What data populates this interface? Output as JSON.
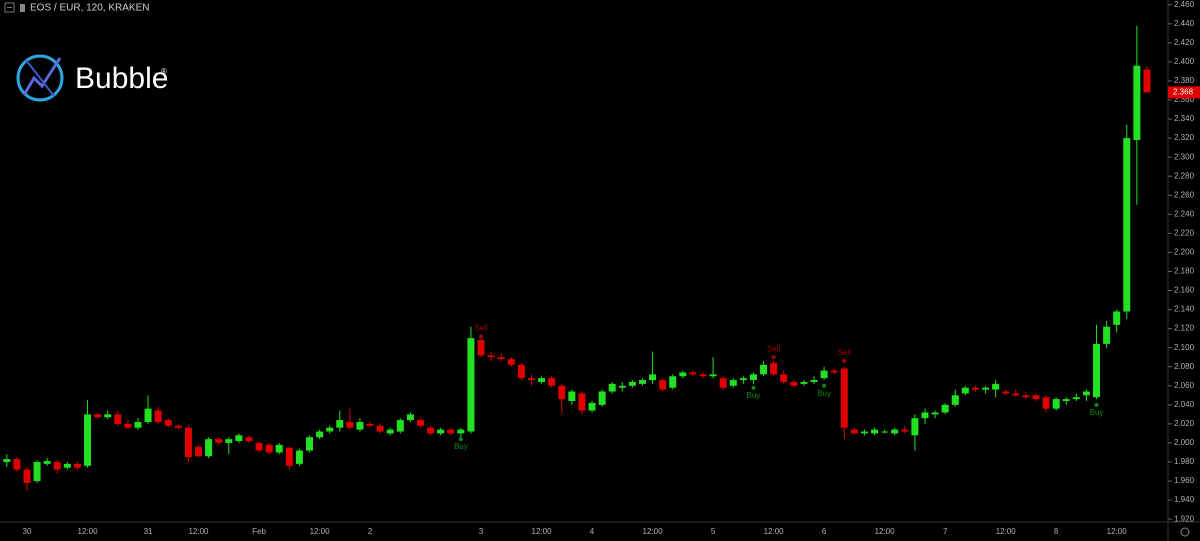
{
  "chart_data": {
    "type": "candlestick",
    "title": "EOS / EUR, 120, KRAKEN",
    "logo_text": "Bubble",
    "logo_mark": "®",
    "up_color": "#22e022",
    "down_color": "#e00000",
    "categories": [
      null,
      null,
      "30",
      null,
      null,
      null,
      null,
      null,
      "12:00",
      null,
      null,
      null,
      null,
      null,
      "31",
      null,
      null,
      null,
      null,
      "12:00",
      null,
      null,
      null,
      null,
      null,
      "Feb",
      null,
      null,
      null,
      null,
      null,
      "12:00",
      null,
      null,
      null,
      null,
      "2",
      null,
      null,
      null,
      null,
      null,
      null,
      null,
      null,
      null,
      null,
      "3",
      null,
      null,
      null,
      null,
      null,
      "12:00",
      null,
      null,
      null,
      null,
      "4",
      null,
      null,
      null,
      null,
      null,
      "12:00",
      null,
      null,
      null,
      null,
      null,
      "5",
      null,
      null,
      null,
      null,
      null,
      "12:00",
      null,
      null,
      null,
      null,
      "6",
      null,
      null,
      null,
      null,
      null,
      "12:00",
      null,
      null,
      null,
      null,
      null,
      "7",
      null,
      null,
      null,
      null,
      null,
      "12:00",
      null,
      null,
      null,
      null,
      "8",
      null,
      null,
      null,
      null,
      null,
      "12:00",
      null,
      null,
      null
    ],
    "open": [
      1.98,
      1.983,
      1.972,
      1.96,
      1.978,
      1.98,
      1.974,
      1.978,
      1.976,
      2.03,
      2.027,
      2.03,
      2.02,
      2.016,
      2.022,
      2.034,
      2.024,
      2.018,
      2.016,
      1.996,
      1.986,
      2.004,
      2.0,
      2.002,
      2.006,
      2.0,
      1.998,
      1.99,
      1.995,
      1.978,
      1.992,
      2.006,
      2.012,
      2.016,
      2.022,
      2.014,
      2.02,
      2.018,
      2.01,
      2.012,
      2.024,
      2.024,
      2.016,
      2.01,
      2.014,
      2.01,
      2.012,
      2.108,
      2.092,
      2.09,
      2.088,
      2.082,
      2.068,
      2.064,
      2.068,
      2.06,
      2.044,
      2.052,
      2.034,
      2.04,
      2.054,
      2.058,
      2.06,
      2.062,
      2.066,
      2.066,
      2.058,
      2.07,
      2.074,
      2.072,
      2.07,
      2.068,
      2.06,
      2.066,
      2.066,
      2.072,
      2.084,
      2.072,
      2.064,
      2.062,
      2.064,
      2.068,
      2.076,
      2.078,
      2.014,
      2.01,
      2.01,
      2.012,
      2.01,
      2.014,
      2.008,
      2.026,
      2.03,
      2.032,
      2.04,
      2.052,
      2.058,
      2.056,
      2.056,
      2.054,
      2.052,
      2.05,
      2.05,
      2.048,
      2.036,
      2.044,
      2.046,
      2.05,
      2.048,
      2.104,
      2.124,
      2.138,
      2.318,
      2.392
    ],
    "high": [
      1.988,
      1.985,
      1.975,
      1.982,
      1.984,
      1.982,
      1.98,
      1.98,
      2.045,
      2.032,
      2.034,
      2.034,
      2.024,
      2.026,
      2.05,
      2.038,
      2.026,
      2.02,
      2.018,
      1.998,
      2.006,
      2.006,
      2.006,
      2.01,
      2.008,
      2.002,
      2.0,
      2.0,
      1.996,
      1.994,
      2.008,
      2.014,
      2.018,
      2.034,
      2.036,
      2.026,
      2.022,
      2.02,
      2.016,
      2.026,
      2.032,
      2.026,
      2.018,
      2.016,
      2.016,
      2.016,
      2.122,
      2.11,
      2.096,
      2.094,
      2.09,
      2.084,
      2.072,
      2.07,
      2.07,
      2.062,
      2.056,
      2.054,
      2.044,
      2.056,
      2.064,
      2.064,
      2.066,
      2.068,
      2.096,
      2.068,
      2.072,
      2.076,
      2.076,
      2.074,
      2.09,
      2.07,
      2.068,
      2.07,
      2.074,
      2.086,
      2.086,
      2.076,
      2.066,
      2.066,
      2.07,
      2.08,
      2.078,
      2.08,
      2.016,
      2.014,
      2.016,
      2.014,
      2.016,
      2.018,
      2.03,
      2.036,
      2.034,
      2.042,
      2.056,
      2.06,
      2.06,
      2.06,
      2.066,
      2.056,
      2.056,
      2.054,
      2.052,
      2.05,
      2.048,
      2.048,
      2.052,
      2.056,
      2.124,
      2.128,
      2.14,
      2.334,
      2.438,
      2.396
    ],
    "low": [
      1.975,
      1.97,
      1.95,
      1.958,
      1.976,
      1.968,
      1.972,
      1.972,
      1.974,
      2.025,
      2.025,
      2.018,
      2.014,
      2.014,
      2.02,
      2.02,
      2.016,
      2.014,
      1.98,
      1.985,
      1.984,
      1.998,
      1.988,
      2.0,
      2.0,
      1.99,
      1.988,
      1.988,
      1.972,
      1.976,
      1.99,
      2.004,
      2.01,
      2.012,
      2.014,
      2.012,
      2.016,
      2.01,
      2.008,
      2.01,
      2.022,
      2.016,
      2.008,
      2.008,
      2.008,
      2.006,
      2.01,
      2.09,
      2.086,
      2.086,
      2.08,
      2.066,
      2.06,
      2.062,
      2.058,
      2.032,
      2.04,
      2.03,
      2.032,
      2.038,
      2.052,
      2.054,
      2.058,
      2.06,
      2.062,
      2.054,
      2.056,
      2.068,
      2.07,
      2.068,
      2.068,
      2.056,
      2.058,
      2.062,
      2.062,
      2.07,
      2.07,
      2.062,
      2.058,
      2.06,
      2.062,
      2.066,
      2.072,
      2.004,
      2.008,
      2.008,
      2.008,
      2.01,
      2.008,
      2.01,
      1.992,
      2.02,
      2.026,
      2.03,
      2.038,
      2.05,
      2.054,
      2.052,
      2.048,
      2.05,
      2.048,
      2.046,
      2.044,
      2.032,
      2.034,
      2.04,
      2.044,
      2.044,
      2.046,
      2.1,
      2.116,
      2.13,
      2.25,
      2.368
    ],
    "close": [
      1.983,
      1.972,
      1.958,
      1.98,
      1.981,
      1.972,
      1.978,
      1.974,
      2.03,
      2.027,
      2.03,
      2.02,
      2.016,
      2.022,
      2.036,
      2.022,
      2.018,
      2.016,
      1.985,
      1.986,
      2.004,
      2.0,
      2.004,
      2.008,
      2.002,
      1.992,
      1.99,
      1.998,
      1.976,
      1.992,
      2.006,
      2.012,
      2.016,
      2.024,
      2.016,
      2.022,
      2.018,
      2.012,
      2.014,
      2.024,
      2.03,
      2.018,
      2.01,
      2.014,
      2.01,
      2.014,
      2.11,
      2.092,
      2.09,
      2.088,
      2.082,
      2.068,
      2.066,
      2.068,
      2.06,
      2.046,
      2.054,
      2.034,
      2.042,
      2.054,
      2.062,
      2.06,
      2.064,
      2.066,
      2.072,
      2.056,
      2.07,
      2.074,
      2.072,
      2.07,
      2.072,
      2.058,
      2.066,
      2.068,
      2.072,
      2.082,
      2.072,
      2.064,
      2.06,
      2.064,
      2.066,
      2.076,
      2.074,
      2.016,
      2.01,
      2.012,
      2.014,
      2.012,
      2.014,
      2.012,
      2.026,
      2.032,
      2.032,
      2.04,
      2.05,
      2.058,
      2.056,
      2.058,
      2.062,
      2.052,
      2.05,
      2.048,
      2.046,
      2.036,
      2.046,
      2.046,
      2.048,
      2.054,
      2.104,
      2.122,
      2.138,
      2.32,
      2.396,
      2.368
    ],
    "ylim": [
      1.917,
      2.465
    ],
    "yticks": [
      {
        "value": 1.92,
        "label": "1.920"
      },
      {
        "value": 1.94,
        "label": "1.940"
      },
      {
        "value": 1.96,
        "label": "1.960"
      },
      {
        "value": 1.98,
        "label": "1.980"
      },
      {
        "value": 2.0,
        "label": "2.000"
      },
      {
        "value": 2.02,
        "label": "2.020"
      },
      {
        "value": 2.04,
        "label": "2.040"
      },
      {
        "value": 2.06,
        "label": "2.060"
      },
      {
        "value": 2.08,
        "label": "2.080"
      },
      {
        "value": 2.1,
        "label": "2.100"
      },
      {
        "value": 2.12,
        "label": "2.120"
      },
      {
        "value": 2.14,
        "label": "2.140"
      },
      {
        "value": 2.16,
        "label": "2.160"
      },
      {
        "value": 2.18,
        "label": "2.180"
      },
      {
        "value": 2.2,
        "label": "2.200"
      },
      {
        "value": 2.22,
        "label": "2.220"
      },
      {
        "value": 2.24,
        "label": "2.240"
      },
      {
        "value": 2.26,
        "label": "2.260"
      },
      {
        "value": 2.28,
        "label": "2.280"
      },
      {
        "value": 2.3,
        "label": "2.300"
      },
      {
        "value": 2.32,
        "label": "2.320"
      },
      {
        "value": 2.34,
        "label": "2.340"
      },
      {
        "value": 2.36,
        "label": "2.360"
      },
      {
        "value": 2.38,
        "label": "2.380"
      },
      {
        "value": 2.4,
        "label": "2.400"
      },
      {
        "value": 2.42,
        "label": "2.420"
      },
      {
        "value": 2.44,
        "label": "2.440"
      },
      {
        "value": 2.46,
        "label": "2.460"
      }
    ],
    "last_price": 2.368,
    "annotations": [
      {
        "text": "Buy",
        "value": 2.004,
        "color": "#0c8a0c"
      },
      {
        "text": "Sell",
        "value": 2.112,
        "color": "#a00000"
      },
      {
        "text": "Buy",
        "value": 2.058,
        "color": "#0c8a0c"
      },
      {
        "text": "Sell",
        "value": 2.09,
        "color": "#a00000"
      },
      {
        "text": "Buy",
        "value": 2.06,
        "color": "#0c8a0c"
      },
      {
        "text": "Sell",
        "value": 2.086,
        "color": "#a00000"
      },
      {
        "text": "Buy",
        "value": 2.04,
        "color": "#0c8a0c"
      }
    ]
  }
}
